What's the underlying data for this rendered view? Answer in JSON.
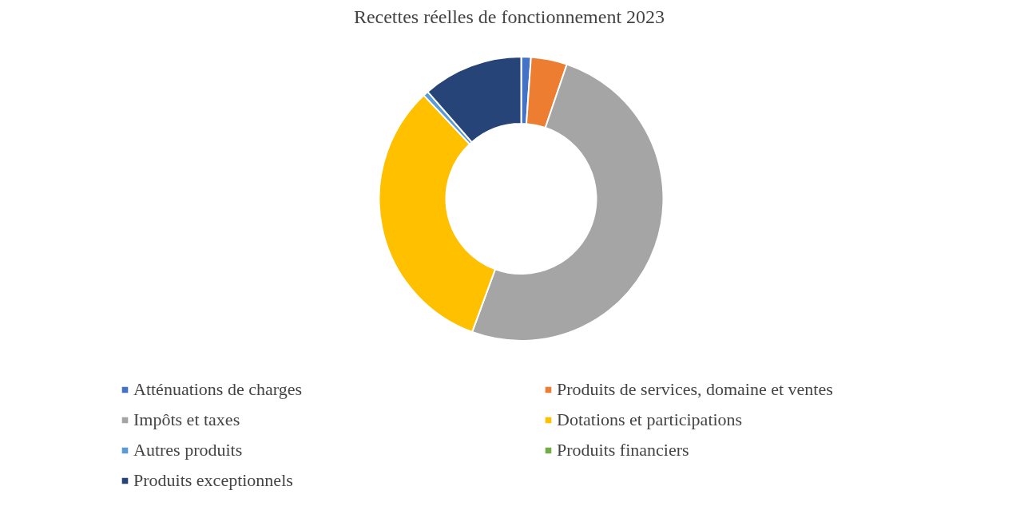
{
  "chart_data": {
    "type": "donut",
    "title": "Recettes réelles de fonctionnement  2023",
    "categories": [
      "Atténuations de charges",
      "Produits de services, domaine et ventes",
      "Impôts et taxes",
      "Dotations et participations",
      "Autres produits",
      "Produits financiers",
      "Produits exceptionnels"
    ],
    "values": [
      1.1,
      4.1,
      50.3,
      32.3,
      0.6,
      null,
      11.4
    ],
    "colors": [
      "#4472c4",
      "#ed7d31",
      "#a5a5a5",
      "#ffc000",
      "#5b9bd5",
      "#70ad47",
      "#264478"
    ],
    "legend": "bottom"
  }
}
